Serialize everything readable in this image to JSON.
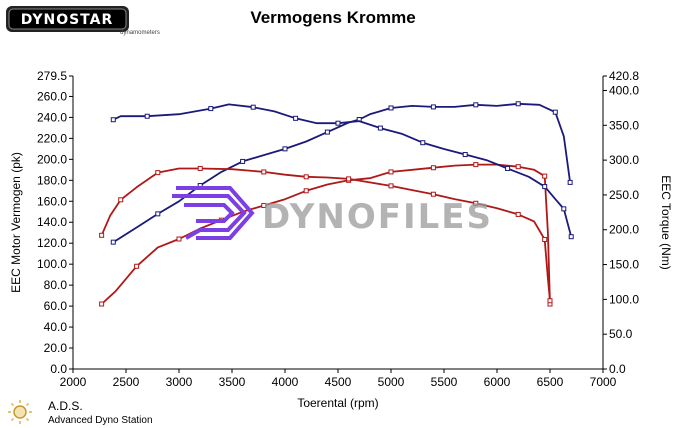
{
  "brand": {
    "logo": "DYNOSTAR",
    "logo_sub": "dynamometers"
  },
  "watermark": {
    "text": "DYNOFILES",
    "color": "#7b3fe4"
  },
  "footer": {
    "abbr": "A.D.S.",
    "name": "Advanced Dyno Station"
  },
  "chart_data": {
    "type": "line",
    "title": "Vermogens Kromme",
    "xlabel": "Toerental (rpm)",
    "ylabel": "EEC Motor Vermogen (pk)",
    "y2label": "EEC Torque (Nm)",
    "xlim": [
      2000,
      7000
    ],
    "ylim": [
      0,
      279.5
    ],
    "y2lim": [
      0,
      420.8
    ],
    "xticks": [
      2000,
      2500,
      3000,
      3500,
      4000,
      4500,
      5000,
      5500,
      6000,
      6500,
      7000
    ],
    "yticks": [
      "0.0",
      "20.0",
      "40.0",
      "60.0",
      "80.0",
      "100.0",
      "120.0",
      "140.0",
      "160.0",
      "180.0",
      "200.0",
      "220.0",
      "240.0",
      "260.0",
      "279.5"
    ],
    "y2ticks": [
      "0.0",
      "50.0",
      "100.0",
      "150.0",
      "200.0",
      "250.0",
      "300.0",
      "350.0",
      "400.0",
      "420.8"
    ],
    "grid": false,
    "series": [
      {
        "color": "#1a1a7a",
        "axis": "left",
        "marker": "square",
        "x": [
          2380,
          2600,
          2800,
          3000,
          3200,
          3400,
          3600,
          3800,
          4000,
          4200,
          4400,
          4600,
          4700,
          4800,
          5000,
          5200,
          5400,
          5600,
          5800,
          6000,
          6200,
          6400,
          6550,
          6630,
          6690
        ],
        "y": [
          121,
          135,
          148,
          160,
          175,
          188,
          198,
          204,
          210,
          217,
          226,
          235,
          238,
          243,
          249,
          251,
          250,
          250,
          252,
          251,
          253,
          252,
          245,
          222,
          178
        ]
      },
      {
        "color": "#b01818",
        "axis": "left",
        "marker": "square",
        "x": [
          2270,
          2400,
          2600,
          2800,
          3000,
          3200,
          3400,
          3600,
          3800,
          4000,
          4200,
          4400,
          4600,
          4800,
          5000,
          5200,
          5400,
          5600,
          5800,
          6000,
          6200,
          6350,
          6450,
          6480,
          6500
        ],
        "y": [
          62,
          74,
          98,
          116,
          124,
          134,
          142,
          150,
          156,
          162,
          170,
          176,
          180,
          182,
          188,
          190,
          192,
          194,
          195,
          195,
          193,
          190,
          184,
          130,
          62
        ]
      },
      {
        "color": "#1a1a7a",
        "axis": "right",
        "marker": "square",
        "x": [
          2380,
          2450,
          2700,
          3000,
          3300,
          3470,
          3700,
          3900,
          4100,
          4300,
          4500,
          4700,
          4900,
          5100,
          5300,
          5500,
          5700,
          5900,
          6100,
          6300,
          6450,
          6550,
          6630,
          6700
        ],
        "y": [
          358,
          363,
          363,
          366,
          374,
          380,
          376,
          370,
          360,
          353,
          353,
          356,
          346,
          338,
          325,
          316,
          308,
          300,
          288,
          276,
          262,
          244,
          230,
          190
        ]
      },
      {
        "color": "#b01818",
        "axis": "right",
        "marker": "square",
        "x": [
          2270,
          2350,
          2450,
          2600,
          2800,
          3000,
          3200,
          3500,
          3800,
          4000,
          4200,
          4400,
          4600,
          4800,
          5000,
          5200,
          5400,
          5600,
          5800,
          6000,
          6200,
          6350,
          6450,
          6480,
          6500
        ],
        "y": [
          192,
          220,
          243,
          261,
          282,
          288,
          288,
          287,
          283,
          279,
          276,
          275,
          273,
          268,
          263,
          257,
          251,
          244,
          238,
          231,
          222,
          212,
          186,
          130,
          98
        ]
      }
    ]
  }
}
